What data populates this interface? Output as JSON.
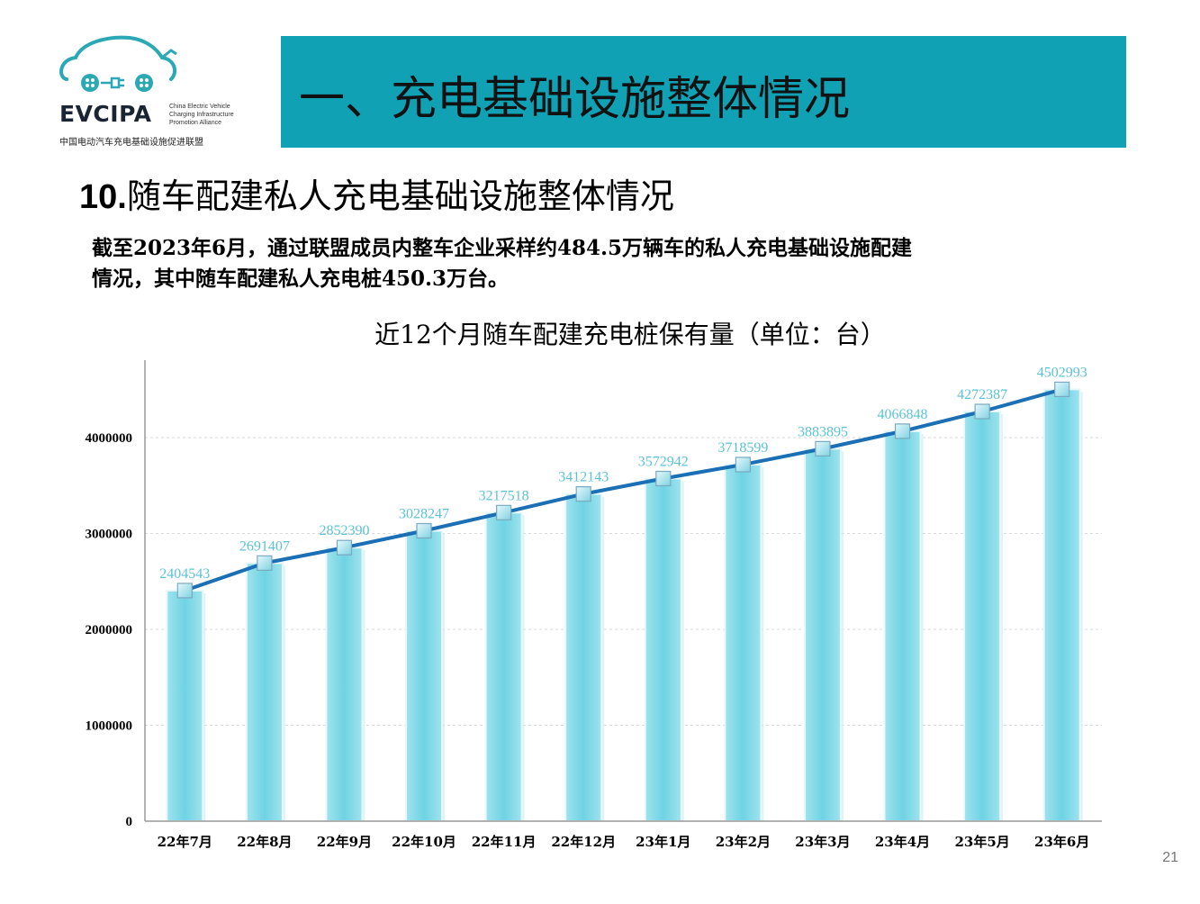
{
  "logo": {
    "brand": "EVCIPA",
    "sub_lines": [
      "China Electric Vehicle",
      "Charging Infrastructure",
      "Promotion Alliance"
    ],
    "cn_name": "中国电动汽车充电基础设施促进联盟"
  },
  "banner": {
    "title": "一、充电基础设施整体情况"
  },
  "section": {
    "number": "10.",
    "title": "随车配建私人充电基础设施整体情况"
  },
  "description": {
    "line1": "截至2023年6月，通过联盟成员内整车企业采样约484.5万辆车的私人充电基础设施配建",
    "line2": "情况，其中随车配建私人充电桩450.3万台。"
  },
  "page_number": "21",
  "colors": {
    "banner": "#10a1b4",
    "bar": "#6fd3e3",
    "line": "#1b6fb5",
    "label": "#5bc3d6"
  },
  "chart_data": {
    "type": "bar",
    "title": "近12个月随车配建充电桩保有量（单位：台）",
    "categories": [
      "22年7月",
      "22年8月",
      "22年9月",
      "22年10月",
      "22年11月",
      "22年12月",
      "23年1月",
      "23年2月",
      "23年3月",
      "23年4月",
      "23年5月",
      "23年6月"
    ],
    "values": [
      2404543,
      2691407,
      2852390,
      3028247,
      3217518,
      3412143,
      3572942,
      3718599,
      3883895,
      4066848,
      4272387,
      4502993
    ],
    "overlay_line": true,
    "data_labels": [
      "2404543",
      "2691407",
      "2852390",
      "3028247",
      "3217518",
      "3412143",
      "3572942",
      "3718599",
      "3883895",
      "4066848",
      "4272387",
      "4502993"
    ],
    "yticks": [
      "0",
      "1000000",
      "2000000",
      "3000000",
      "4000000"
    ],
    "ytick_values": [
      0,
      1000000,
      2000000,
      3000000,
      4000000
    ],
    "ylim": [
      0,
      4800000
    ],
    "grid": true,
    "legend": "none"
  }
}
